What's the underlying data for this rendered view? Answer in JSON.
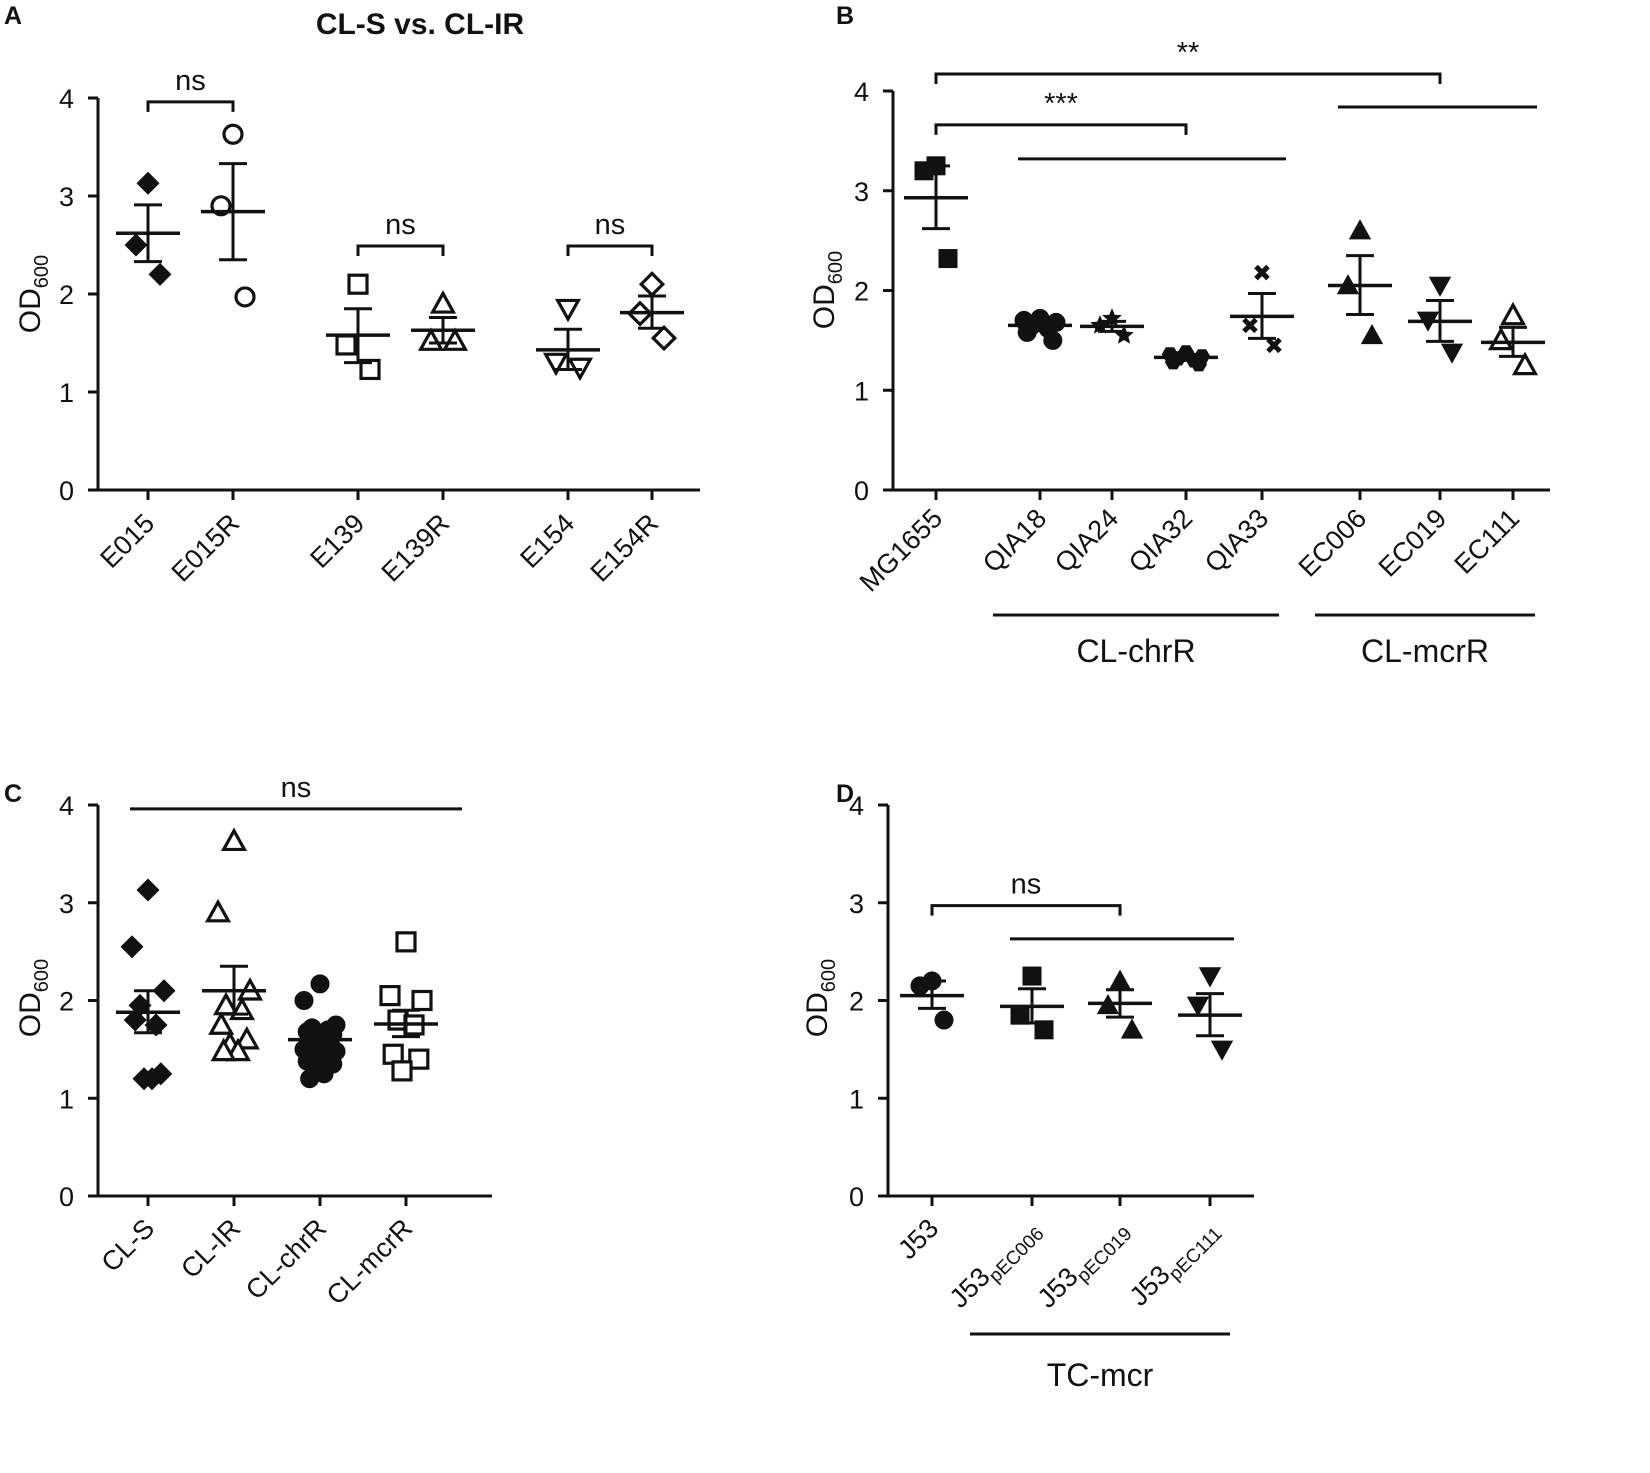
{
  "figure": {
    "colors": {
      "ink": "#111111",
      "background": "#ffffff"
    }
  },
  "chart_data": [
    {
      "panel": "A",
      "type": "scatter",
      "title": "CL-S vs. CL-IR",
      "ylabel": {
        "main": "OD",
        "sub": "600"
      },
      "ylim": [
        0,
        4
      ],
      "yticks": [
        "0",
        "1",
        "2",
        "3",
        "4"
      ],
      "categories": [
        "E015",
        "E015R",
        "E139",
        "E139R",
        "E154",
        "E154R"
      ],
      "points": [
        {
          "category": "E015",
          "marker": "diamond-filled",
          "values": [
            3.13,
            2.5,
            2.2
          ],
          "mean": 2.62,
          "sem_low": 2.33,
          "sem_high": 2.91
        },
        {
          "category": "E015R",
          "marker": "circle-open",
          "values": [
            3.63,
            2.9,
            1.97
          ],
          "mean": 2.84,
          "sem_low": 2.35,
          "sem_high": 3.33
        },
        {
          "category": "E139",
          "marker": "square-open",
          "values": [
            2.1,
            1.48,
            1.23
          ],
          "mean": 1.58,
          "sem_low": 1.3,
          "sem_high": 1.85
        },
        {
          "category": "E139R",
          "marker": "triangle-up-open",
          "values": [
            1.9,
            1.52,
            1.52
          ],
          "mean": 1.63,
          "sem_low": 1.5,
          "sem_high": 1.76
        },
        {
          "category": "E154",
          "marker": "triangle-down-open",
          "values": [
            1.85,
            1.3,
            1.25
          ],
          "mean": 1.43,
          "sem_low": 1.23,
          "sem_high": 1.64
        },
        {
          "category": "E154R",
          "marker": "diamond-open",
          "values": [
            2.1,
            1.8,
            1.55
          ],
          "mean": 1.81,
          "sem_low": 1.65,
          "sem_high": 1.98
        }
      ],
      "brackets": [
        {
          "from": "E015",
          "to": "E015R",
          "y": 3.96,
          "label": "ns"
        },
        {
          "from": "E139",
          "to": "E139R",
          "y": 2.49,
          "label": "ns"
        },
        {
          "from": "E154",
          "to": "E154R",
          "y": 2.49,
          "label": "ns"
        }
      ]
    },
    {
      "panel": "B",
      "type": "scatter",
      "title": "",
      "ylabel": {
        "main": "OD",
        "sub": "600"
      },
      "ylim": [
        0,
        4
      ],
      "yticks": [
        "0",
        "1",
        "2",
        "3",
        "4"
      ],
      "categories": [
        "MG1655",
        "QIA18",
        "QIA24",
        "QIA32",
        "QIA33",
        "EC006",
        "EC019",
        "EC111"
      ],
      "points": [
        {
          "category": "MG1655",
          "marker": "square-filled",
          "values": [
            3.25,
            3.2,
            2.32
          ],
          "mean": 2.93,
          "sem_low": 2.62,
          "sem_high": 3.25
        },
        {
          "category": "QIA18",
          "marker": "circle-filled",
          "values": [
            1.72,
            1.7,
            1.68,
            1.65,
            1.62,
            1.58,
            1.5
          ],
          "mean": 1.65,
          "sem_low": 1.6,
          "sem_high": 1.7
        },
        {
          "category": "QIA24",
          "marker": "star-filled",
          "values": [
            1.72,
            1.65,
            1.55
          ],
          "mean": 1.64,
          "sem_low": 1.59,
          "sem_high": 1.69
        },
        {
          "category": "QIA32",
          "marker": "hexagon-filled",
          "values": [
            1.38,
            1.36,
            1.34,
            1.32,
            1.3,
            1.28,
            1.26
          ],
          "mean": 1.33,
          "sem_low": 1.3,
          "sem_high": 1.36
        },
        {
          "category": "QIA33",
          "marker": "x-filled",
          "values": [
            2.18,
            1.65,
            1.45
          ],
          "mean": 1.74,
          "sem_low": 1.52,
          "sem_high": 1.97
        },
        {
          "category": "EC006",
          "marker": "triangle-up-filled",
          "values": [
            2.6,
            2.05,
            1.55
          ],
          "mean": 2.05,
          "sem_low": 1.76,
          "sem_high": 2.35
        },
        {
          "category": "EC019",
          "marker": "triangle-down-filled",
          "values": [
            2.05,
            1.7,
            1.38
          ],
          "mean": 1.69,
          "sem_low": 1.49,
          "sem_high": 1.9
        },
        {
          "category": "EC111",
          "marker": "triangle-up-open",
          "values": [
            1.75,
            1.5,
            1.25
          ],
          "mean": 1.48,
          "sem_low": 1.34,
          "sem_high": 1.63
        }
      ],
      "brackets": [
        {
          "from": "MG1655",
          "to": "EC019",
          "y": 4.17,
          "label": "**"
        },
        {
          "from": "MG1655",
          "to": "QIA32",
          "y": 3.66,
          "label": "***"
        }
      ],
      "group_lines": [
        {
          "from": "QIA18",
          "to": "QIA33",
          "y": 3.32
        },
        {
          "from": "EC006",
          "to": "EC111",
          "y": 3.84
        }
      ],
      "groups": [
        {
          "label": "CL-chrR",
          "from": "QIA18",
          "to": "QIA33"
        },
        {
          "label": "CL-mcrR",
          "from": "EC006",
          "to": "EC111"
        }
      ]
    },
    {
      "panel": "C",
      "type": "scatter",
      "title": "",
      "ylabel": {
        "main": "OD",
        "sub": "600"
      },
      "ylim": [
        0,
        4
      ],
      "yticks": [
        "0",
        "1",
        "2",
        "3",
        "4"
      ],
      "categories": [
        "CL-S",
        "CL-IR",
        "CL-chrR",
        "CL-mcrR"
      ],
      "points": [
        {
          "category": "CL-S",
          "marker": "diamond-filled",
          "values": [
            3.13,
            2.55,
            2.1,
            1.95,
            1.75,
            1.8,
            1.25,
            1.2,
            1.2
          ],
          "mean": 1.88,
          "sem_low": 1.67,
          "sem_high": 2.1
        },
        {
          "category": "CL-IR",
          "marker": "triangle-up-open",
          "values": [
            3.63,
            2.9,
            2.1,
            1.95,
            1.9,
            1.75,
            1.6,
            1.55,
            1.48,
            1.48
          ],
          "mean": 2.1,
          "sem_low": 1.86,
          "sem_high": 2.35
        },
        {
          "category": "CL-chrR",
          "marker": "circle-filled",
          "values": [
            2.17,
            2.0,
            1.75,
            1.72,
            1.7,
            1.68,
            1.65,
            1.62,
            1.6,
            1.58,
            1.55,
            1.52,
            1.5,
            1.48,
            1.45,
            1.42,
            1.38,
            1.35,
            1.3,
            1.25,
            1.2
          ],
          "mean": 1.6,
          "sem_low": 1.53,
          "sem_high": 1.67
        },
        {
          "category": "CL-mcrR",
          "marker": "square-open",
          "values": [
            2.6,
            2.05,
            2.0,
            1.8,
            1.75,
            1.45,
            1.4,
            1.28
          ],
          "mean": 1.76,
          "sem_low": 1.63,
          "sem_high": 1.9
        }
      ],
      "brackets": [
        {
          "from": "CL-S",
          "to": "CL-mcrR",
          "y": 3.96,
          "label": "ns",
          "style": "line"
        }
      ]
    },
    {
      "panel": "D",
      "type": "scatter",
      "title": "",
      "ylabel": {
        "main": "OD",
        "sub": "600"
      },
      "ylim": [
        0,
        4
      ],
      "yticks": [
        "0",
        "1",
        "2",
        "3",
        "4"
      ],
      "categories": [
        {
          "main": "J53",
          "sub": ""
        },
        {
          "main": "J53",
          "sub": "pEC006"
        },
        {
          "main": "J53",
          "sub": "pEC019"
        },
        {
          "main": "J53",
          "sub": "pEC111"
        }
      ],
      "points": [
        {
          "category": "J53",
          "marker": "circle-filled",
          "values": [
            2.2,
            2.15,
            1.8
          ],
          "mean": 2.05,
          "sem_low": 1.92,
          "sem_high": 2.2
        },
        {
          "category": "J53pEC006",
          "marker": "square-filled",
          "values": [
            2.25,
            1.85,
            1.7
          ],
          "mean": 1.94,
          "sem_low": 1.77,
          "sem_high": 2.12
        },
        {
          "category": "J53pEC019",
          "marker": "triangle-up-filled",
          "values": [
            2.2,
            1.95,
            1.7
          ],
          "mean": 1.97,
          "sem_low": 1.83,
          "sem_high": 2.11
        },
        {
          "category": "J53pEC111",
          "marker": "triangle-down-filled",
          "values": [
            2.25,
            1.95,
            1.5
          ],
          "mean": 1.85,
          "sem_low": 1.64,
          "sem_high": 2.07
        }
      ],
      "brackets": [
        {
          "from": "J53",
          "to": "J53pEC019",
          "y": 2.97,
          "label": "ns"
        }
      ],
      "group_lines": [
        {
          "from": "J53pEC006",
          "to": "J53pEC111",
          "y": 2.63
        }
      ],
      "groups": [
        {
          "label": "TC-mcr",
          "from": "J53pEC006",
          "to": "J53pEC111"
        }
      ]
    }
  ]
}
